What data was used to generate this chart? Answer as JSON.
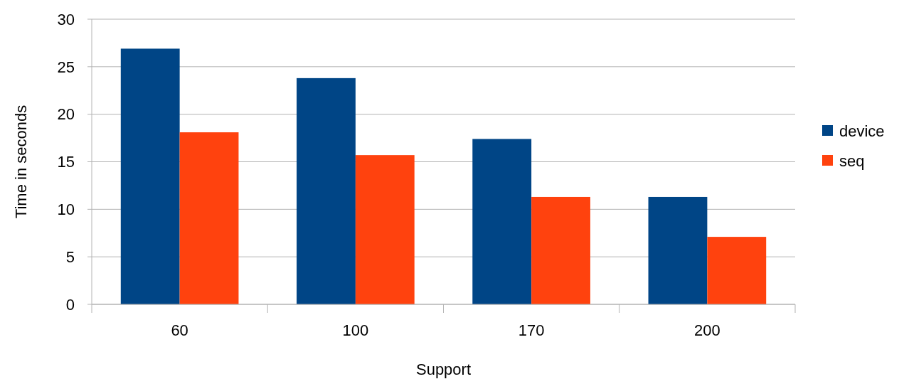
{
  "chart_data": {
    "type": "bar",
    "xlabel": "Support",
    "ylabel": "Time in seconds",
    "categories": [
      "60",
      "100",
      "170",
      "200"
    ],
    "series": [
      {
        "name": "device",
        "color": "#004586",
        "values": [
          26.9,
          23.8,
          17.4,
          11.3
        ]
      },
      {
        "name": "seq",
        "color": "#ff420e",
        "values": [
          18.1,
          15.7,
          11.3,
          7.1
        ]
      }
    ],
    "ylim": [
      0,
      30
    ],
    "yticks": [
      0,
      5,
      10,
      15,
      20,
      25,
      30
    ],
    "grid": "y",
    "legend": "right"
  }
}
